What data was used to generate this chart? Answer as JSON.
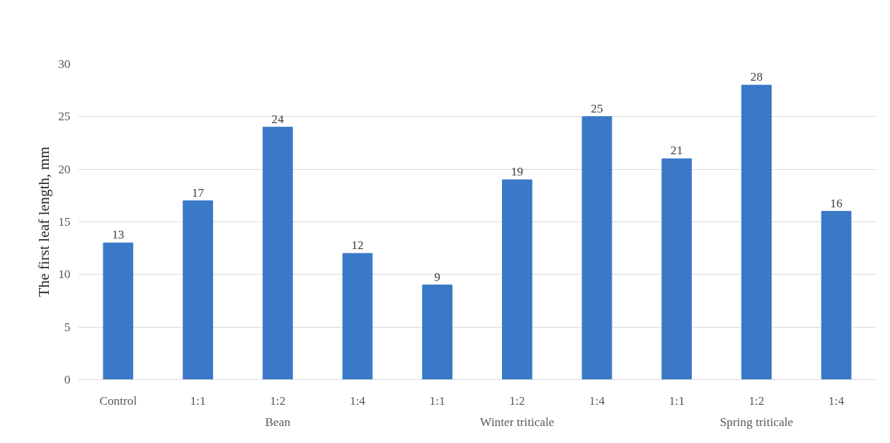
{
  "chart_data": {
    "type": "bar",
    "ylabel": "The first leaf length, mm",
    "categories": [
      "Control",
      "1:1",
      "1:2",
      "1:4",
      "1:1",
      "1:2",
      "1:4",
      "1:1",
      "1:2",
      "1:4"
    ],
    "values": [
      13,
      17,
      24,
      12,
      9,
      19,
      25,
      21,
      28,
      16
    ],
    "color": "#3a78c8",
    "ylim": [
      0,
      30
    ],
    "yticks": [
      0,
      5,
      10,
      15,
      20,
      25,
      30
    ],
    "grid": "y",
    "data_labels": true,
    "annotations": [
      "Bean",
      "Winter triticale",
      "Spring triticale"
    ]
  }
}
